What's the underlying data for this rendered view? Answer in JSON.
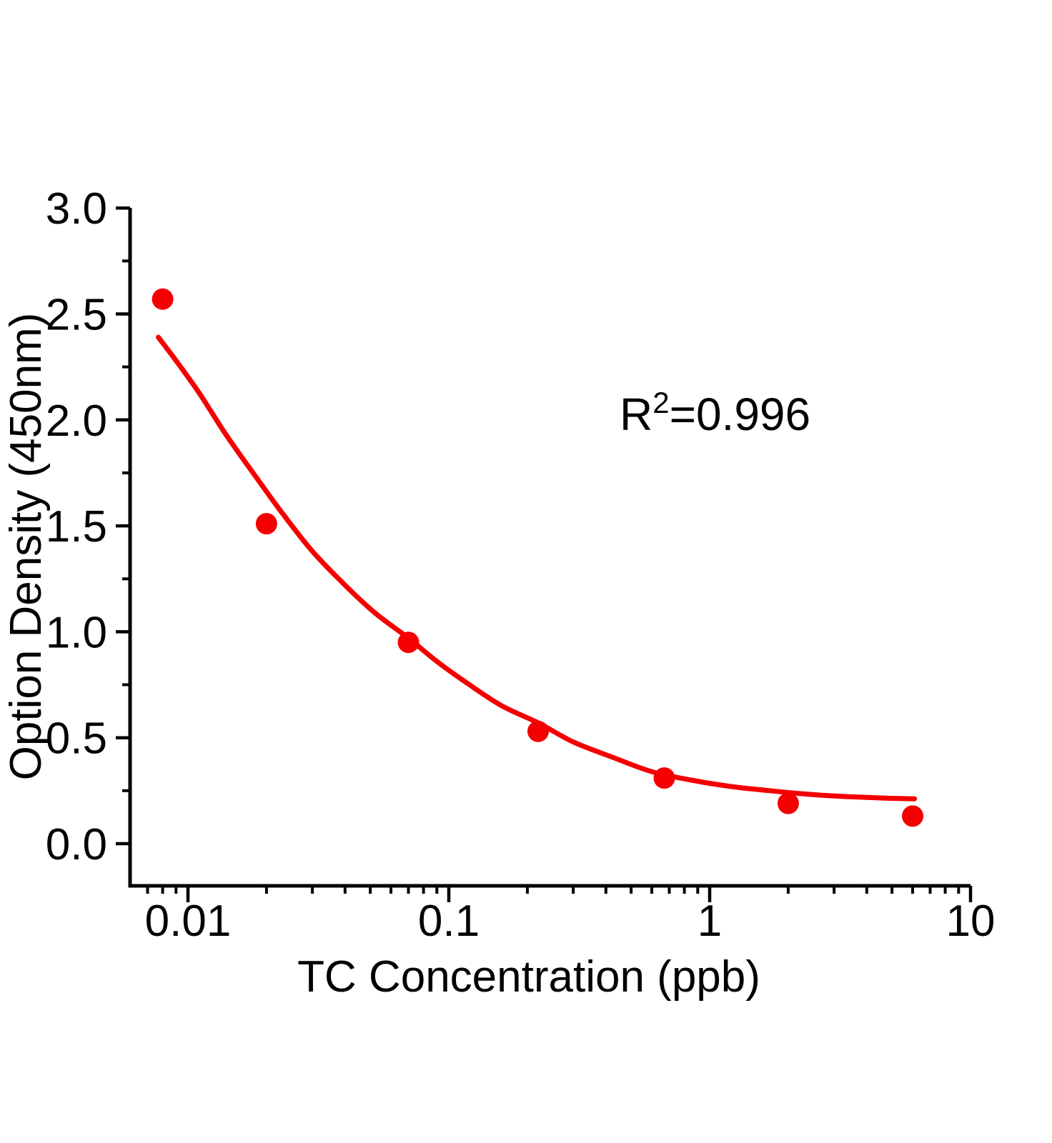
{
  "figure": {
    "background": "#ffffff",
    "axis_color": "#000000",
    "accent_color": "#f40000"
  },
  "chart_data": {
    "type": "scatter",
    "title": "",
    "xlabel": "TC Concentration (ppb)",
    "ylabel": "Option Density (450nm)",
    "x_scale": "log",
    "y_scale": "linear",
    "xlim": [
      0.006,
      10
    ],
    "ylim": [
      -0.2,
      3.0
    ],
    "grid": false,
    "legend": "none",
    "x_major_ticks": {
      "values": [
        0.01,
        0.1,
        1,
        10
      ],
      "labels": [
        "0.01",
        "0.1",
        "1",
        "10"
      ]
    },
    "y_major_ticks": {
      "values": [
        0.0,
        0.5,
        1.0,
        1.5,
        2.0,
        2.5,
        3.0
      ],
      "labels": [
        "0.0",
        "0.5",
        "1.0",
        "1.5",
        "2.0",
        "2.5",
        "3.0"
      ]
    },
    "y_minor_tick_values": [
      0.25,
      0.75,
      1.25,
      1.75,
      2.25,
      2.75
    ],
    "annotation": {
      "base": "R",
      "sup": "2",
      "rest": "=0.996"
    },
    "series": [
      {
        "name": "TC standard data points",
        "type": "scatter",
        "marker": "circle",
        "marker_radius_px": 15,
        "color": "#f40000",
        "points": [
          [
            0.008,
            2.57
          ],
          [
            0.02,
            1.51
          ],
          [
            0.07,
            0.95
          ],
          [
            0.22,
            0.53
          ],
          [
            0.67,
            0.31
          ],
          [
            2.0,
            0.19
          ],
          [
            6.0,
            0.13
          ]
        ]
      },
      {
        "name": "4PL fit curve",
        "type": "line",
        "color": "#f40000",
        "stroke_width_px": 7,
        "points": [
          [
            0.0077,
            2.39
          ],
          [
            0.009,
            2.28
          ],
          [
            0.011,
            2.13
          ],
          [
            0.014,
            1.93
          ],
          [
            0.018,
            1.74
          ],
          [
            0.023,
            1.56
          ],
          [
            0.03,
            1.38
          ],
          [
            0.04,
            1.22
          ],
          [
            0.052,
            1.09
          ],
          [
            0.07,
            0.97
          ],
          [
            0.09,
            0.86
          ],
          [
            0.12,
            0.75
          ],
          [
            0.16,
            0.65
          ],
          [
            0.22,
            0.57
          ],
          [
            0.3,
            0.48
          ],
          [
            0.42,
            0.41
          ],
          [
            0.6,
            0.34
          ],
          [
            0.85,
            0.3
          ],
          [
            1.2,
            0.27
          ],
          [
            1.7,
            0.25
          ],
          [
            2.4,
            0.233
          ],
          [
            3.4,
            0.222
          ],
          [
            4.7,
            0.215
          ],
          [
            6.1,
            0.212
          ]
        ]
      }
    ]
  }
}
